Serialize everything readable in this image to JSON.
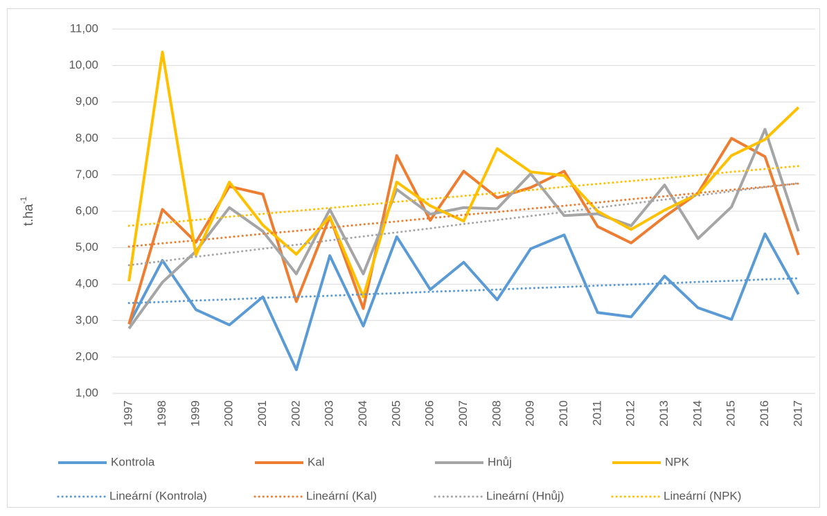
{
  "chart_data": {
    "type": "line",
    "y_label": "t.ha",
    "y_label_sup": "-1",
    "categories": [
      "1997",
      "1998",
      "1999",
      "2000",
      "2001",
      "2002",
      "2003",
      "2004",
      "2005",
      "2006",
      "2007",
      "2008",
      "2009",
      "2010",
      "2011",
      "2012",
      "2013",
      "2014",
      "2015",
      "2016",
      "2017"
    ],
    "series": [
      {
        "name": "Kontrola",
        "color": "#5b9bd5",
        "dash": "solid",
        "values": [
          2.9,
          4.65,
          3.3,
          2.88,
          3.65,
          1.65,
          4.78,
          2.85,
          5.3,
          3.85,
          4.6,
          3.57,
          4.97,
          5.35,
          3.22,
          3.1,
          4.22,
          3.35,
          3.03,
          5.38,
          3.72
        ]
      },
      {
        "name": "Kal",
        "color": "#ed7d31",
        "dash": "solid",
        "values": [
          2.9,
          6.05,
          5.15,
          6.68,
          6.47,
          3.52,
          5.85,
          3.33,
          7.53,
          5.75,
          7.1,
          6.37,
          6.65,
          7.1,
          5.58,
          5.13,
          5.85,
          6.5,
          8.0,
          7.5,
          4.8
        ]
      },
      {
        "name": "Hnůj",
        "color": "#a5a5a5",
        "dash": "solid",
        "values": [
          2.78,
          4.05,
          4.9,
          6.1,
          5.45,
          4.28,
          6.05,
          4.28,
          6.6,
          5.92,
          6.1,
          6.07,
          7.03,
          5.88,
          5.93,
          5.6,
          6.72,
          5.25,
          6.12,
          8.25,
          5.45
        ]
      },
      {
        "name": "NPK",
        "color": "#ffc000",
        "dash": "solid",
        "values": [
          4.08,
          10.37,
          4.8,
          6.8,
          5.62,
          4.82,
          5.85,
          3.65,
          6.8,
          6.15,
          5.73,
          7.72,
          7.08,
          6.98,
          6.0,
          5.5,
          6.03,
          6.48,
          7.53,
          7.97,
          8.85
        ]
      },
      {
        "name": "Lineární (Kontrola)",
        "color": "#5b9bd5",
        "dash": "dotted",
        "values": [
          3.48,
          3.51,
          3.55,
          3.58,
          3.62,
          3.65,
          3.68,
          3.72,
          3.75,
          3.79,
          3.82,
          3.85,
          3.89,
          3.92,
          3.96,
          3.99,
          4.02,
          4.06,
          4.09,
          4.13,
          4.16
        ]
      },
      {
        "name": "Lineární (Kal)",
        "color": "#ed7d31",
        "dash": "dotted",
        "values": [
          5.03,
          5.12,
          5.2,
          5.29,
          5.38,
          5.46,
          5.55,
          5.64,
          5.72,
          5.81,
          5.9,
          5.98,
          6.07,
          6.15,
          6.24,
          6.33,
          6.41,
          6.5,
          6.59,
          6.67,
          6.76
        ]
      },
      {
        "name": "Lineární (Hnůj)",
        "color": "#a5a5a5",
        "dash": "dotted",
        "values": [
          4.52,
          4.63,
          4.75,
          4.86,
          4.97,
          5.08,
          5.2,
          5.31,
          5.42,
          5.53,
          5.65,
          5.76,
          5.87,
          5.98,
          6.1,
          6.21,
          6.32,
          6.43,
          6.55,
          6.66,
          6.77
        ]
      },
      {
        "name": "Lineární (NPK)",
        "color": "#ffc000",
        "dash": "dotted",
        "values": [
          5.6,
          5.68,
          5.76,
          5.85,
          5.93,
          6.01,
          6.09,
          6.17,
          6.26,
          6.34,
          6.42,
          6.5,
          6.58,
          6.67,
          6.75,
          6.83,
          6.91,
          6.99,
          7.08,
          7.16,
          7.24
        ]
      }
    ],
    "ylim": [
      1,
      11
    ],
    "yticks": [
      {
        "value": 1,
        "label": "1,00"
      },
      {
        "value": 2,
        "label": "2,00"
      },
      {
        "value": 3,
        "label": "3,00"
      },
      {
        "value": 4,
        "label": "4,00"
      },
      {
        "value": 5,
        "label": "5,00"
      },
      {
        "value": 6,
        "label": "6,00"
      },
      {
        "value": 7,
        "label": "7,00"
      },
      {
        "value": 8,
        "label": "8,00"
      },
      {
        "value": 9,
        "label": "9,00"
      },
      {
        "value": 10,
        "label": "10,00"
      },
      {
        "value": 11,
        "label": "11,00"
      }
    ],
    "grid": true,
    "legend": "bottom"
  }
}
